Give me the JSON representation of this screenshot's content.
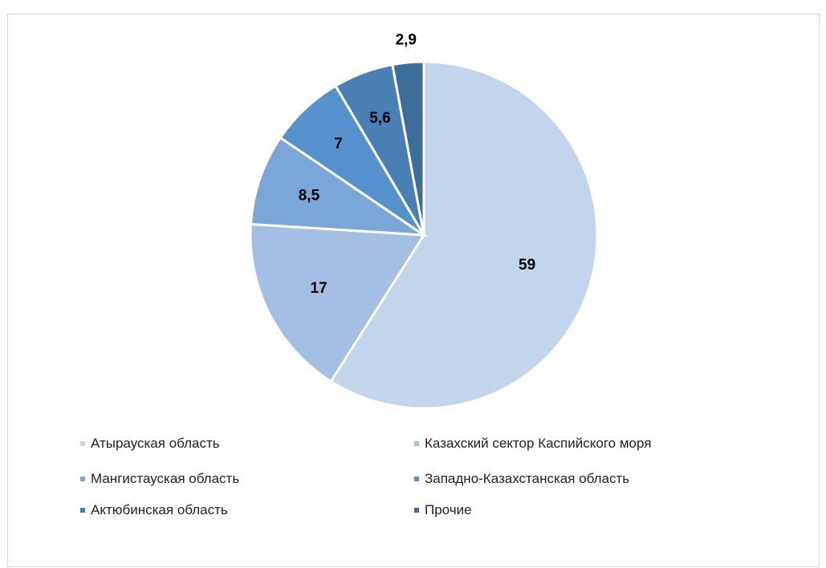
{
  "header": {
    "title": ""
  },
  "colors": {
    "atyrau": "#c3d5ec",
    "caspian": "#a3bfe4",
    "mangistau": "#7aa6d8",
    "west_kz": "#5592cd",
    "aktobe": "#4a7fb5",
    "other": "#3e6d99"
  },
  "chart_data": {
    "type": "pie",
    "title": "",
    "series": [
      {
        "name": "Атырауская область",
        "value": 59,
        "label": "59"
      },
      {
        "name": "Казахский сектор Каспийского моря",
        "value": 17,
        "label": "17"
      },
      {
        "name": "Мангистауская область",
        "value": 8.5,
        "label": "8,5"
      },
      {
        "name": "Западно-Казахстанская область",
        "value": 7,
        "label": "7"
      },
      {
        "name": "Актюбинская область",
        "value": 5.6,
        "label": "5,6"
      },
      {
        "name": "Прочие",
        "value": 2.9,
        "label": "2,9"
      }
    ],
    "legend_position": "bottom"
  }
}
